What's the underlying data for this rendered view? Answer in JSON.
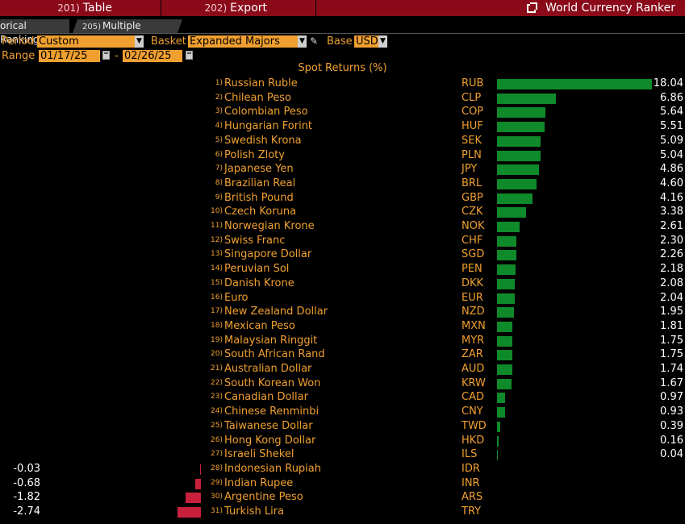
{
  "toolbar": {
    "table_num": "201)",
    "table_label": "Table",
    "export_num": "202)",
    "export_label": "Export",
    "title": "World Currency Ranker"
  },
  "tabs": {
    "historical_label": "orical Ranking",
    "multiple_num": "205)",
    "multiple_label": "Multiple Ranking"
  },
  "controls": {
    "period_label": "Period",
    "period_value": "Custom",
    "basket_label": "Basket",
    "basket_value": "Expanded Majors",
    "base_label": "Base",
    "base_value": "USD",
    "range_label": "Range",
    "range_start": "01/17/25",
    "range_sep": "-",
    "range_end": "02/26/25"
  },
  "colors": {
    "positive": "#0f8a2a",
    "negative": "#c8203c",
    "accent": "#f0a030",
    "toolbar": "#8b0a1a"
  },
  "chart_data": {
    "type": "bar",
    "title": "Spot Returns (%)",
    "rows": [
      {
        "rank": "1)",
        "name": "Russian Ruble",
        "code": "RUB",
        "value": 18.04,
        "label": "18.04"
      },
      {
        "rank": "2)",
        "name": "Chilean Peso",
        "code": "CLP",
        "value": 6.86,
        "label": "6.86"
      },
      {
        "rank": "3)",
        "name": "Colombian Peso",
        "code": "COP",
        "value": 5.64,
        "label": "5.64"
      },
      {
        "rank": "4)",
        "name": "Hungarian Forint",
        "code": "HUF",
        "value": 5.51,
        "label": "5.51"
      },
      {
        "rank": "5)",
        "name": "Swedish Krona",
        "code": "SEK",
        "value": 5.09,
        "label": "5.09"
      },
      {
        "rank": "6)",
        "name": "Polish Zloty",
        "code": "PLN",
        "value": 5.04,
        "label": "5.04"
      },
      {
        "rank": "7)",
        "name": "Japanese Yen",
        "code": "JPY",
        "value": 4.86,
        "label": "4.86"
      },
      {
        "rank": "8)",
        "name": "Brazilian Real",
        "code": "BRL",
        "value": 4.6,
        "label": "4.60"
      },
      {
        "rank": "9)",
        "name": "British Pound",
        "code": "GBP",
        "value": 4.16,
        "label": "4.16"
      },
      {
        "rank": "10)",
        "name": "Czech Koruna",
        "code": "CZK",
        "value": 3.38,
        "label": "3.38"
      },
      {
        "rank": "11)",
        "name": "Norwegian Krone",
        "code": "NOK",
        "value": 2.61,
        "label": "2.61"
      },
      {
        "rank": "12)",
        "name": "Swiss Franc",
        "code": "CHF",
        "value": 2.3,
        "label": "2.30"
      },
      {
        "rank": "13)",
        "name": "Singapore Dollar",
        "code": "SGD",
        "value": 2.26,
        "label": "2.26"
      },
      {
        "rank": "14)",
        "name": "Peruvian Sol",
        "code": "PEN",
        "value": 2.18,
        "label": "2.18"
      },
      {
        "rank": "15)",
        "name": "Danish Krone",
        "code": "DKK",
        "value": 2.08,
        "label": "2.08"
      },
      {
        "rank": "16)",
        "name": "Euro",
        "code": "EUR",
        "value": 2.04,
        "label": "2.04"
      },
      {
        "rank": "17)",
        "name": "New Zealand Dollar",
        "code": "NZD",
        "value": 1.95,
        "label": "1.95"
      },
      {
        "rank": "18)",
        "name": "Mexican Peso",
        "code": "MXN",
        "value": 1.81,
        "label": "1.81"
      },
      {
        "rank": "19)",
        "name": "Malaysian Ringgit",
        "code": "MYR",
        "value": 1.75,
        "label": "1.75"
      },
      {
        "rank": "20)",
        "name": "South African Rand",
        "code": "ZAR",
        "value": 1.75,
        "label": "1.75"
      },
      {
        "rank": "21)",
        "name": "Australian Dollar",
        "code": "AUD",
        "value": 1.74,
        "label": "1.74"
      },
      {
        "rank": "22)",
        "name": "South Korean Won",
        "code": "KRW",
        "value": 1.67,
        "label": "1.67"
      },
      {
        "rank": "23)",
        "name": "Canadian Dollar",
        "code": "CAD",
        "value": 0.97,
        "label": "0.97"
      },
      {
        "rank": "24)",
        "name": "Chinese Renminbi",
        "code": "CNY",
        "value": 0.93,
        "label": "0.93"
      },
      {
        "rank": "25)",
        "name": "Taiwanese Dollar",
        "code": "TWD",
        "value": 0.39,
        "label": "0.39"
      },
      {
        "rank": "26)",
        "name": "Hong Kong Dollar",
        "code": "HKD",
        "value": 0.16,
        "label": "0.16"
      },
      {
        "rank": "27)",
        "name": "Israeli Shekel",
        "code": "ILS",
        "value": 0.04,
        "label": "0.04"
      },
      {
        "rank": "28)",
        "name": "Indonesian Rupiah",
        "code": "IDR",
        "value": -0.03,
        "label": "-0.03"
      },
      {
        "rank": "29)",
        "name": "Indian Rupee",
        "code": "INR",
        "value": -0.68,
        "label": "-0.68"
      },
      {
        "rank": "30)",
        "name": "Argentine Peso",
        "code": "ARS",
        "value": -1.82,
        "label": "-1.82"
      },
      {
        "rank": "31)",
        "name": "Turkish Lira",
        "code": "TRY",
        "value": -2.74,
        "label": "-2.74"
      }
    ]
  }
}
